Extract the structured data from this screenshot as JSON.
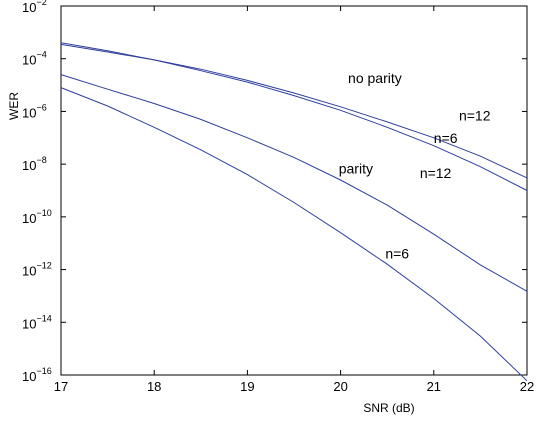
{
  "chart_data": {
    "type": "line",
    "xlabel": "SNR (dB)",
    "ylabel": "WER",
    "xlim": [
      17,
      22
    ],
    "ylim": [
      1e-16,
      0.01
    ],
    "yscale": "log",
    "grid": false,
    "legend": "none",
    "xticks": [
      17,
      18,
      19,
      20,
      21,
      22
    ],
    "yticks": [
      {
        "value": 0.01,
        "base": "10",
        "exp": "−2"
      },
      {
        "value": 0.0001,
        "base": "10",
        "exp": "−4"
      },
      {
        "value": 1e-06,
        "base": "10",
        "exp": "−6"
      },
      {
        "value": 1e-08,
        "base": "10",
        "exp": "−8"
      },
      {
        "value": 1e-10,
        "base": "10",
        "exp": "−10"
      },
      {
        "value": 1e-12,
        "base": "10",
        "exp": "−12"
      },
      {
        "value": 1e-14,
        "base": "10",
        "exp": "−14"
      },
      {
        "value": 1e-16,
        "base": "10",
        "exp": "−16"
      }
    ],
    "line_color": "#2f3f9e",
    "series": [
      {
        "x": [
          17,
          17.5,
          18,
          18.5,
          19,
          19.5,
          20,
          20.5,
          21,
          21.5,
          22
        ],
        "y": [
          0.0004,
          0.0002,
          9e-05,
          4e-05,
          1.5e-05,
          5e-06,
          1.5e-06,
          4e-07,
          1e-07,
          2e-08,
          3e-09
        ]
      },
      {
        "x": [
          17,
          17.5,
          18,
          18.5,
          19,
          19.5,
          20,
          20.5,
          21,
          21.5,
          22
        ],
        "y": [
          0.00035,
          0.00018,
          9e-05,
          3.5e-05,
          1.3e-05,
          4e-06,
          1.1e-06,
          2.5e-07,
          5e-08,
          8e-09,
          1e-09
        ]
      },
      {
        "x": [
          17,
          17.5,
          18,
          18.5,
          19,
          19.5,
          20,
          20.5,
          21,
          21.5,
          22
        ],
        "y": [
          2.5e-05,
          7e-06,
          2e-06,
          5e-07,
          1e-07,
          1.8e-08,
          2.5e-09,
          2.8e-10,
          2.2e-11,
          1.5e-12,
          1.5e-13
        ]
      },
      {
        "x": [
          17,
          17.5,
          18,
          18.5,
          19,
          19.5,
          20,
          20.5,
          21,
          21.5,
          22
        ],
        "y": [
          8e-06,
          1.6e-06,
          2.5e-07,
          3.5e-08,
          4e-09,
          3.5e-10,
          2.5e-11,
          1.6e-12,
          8e-14,
          3e-15,
          6e-17
        ]
      }
    ],
    "annotations": [
      {
        "text": "no parity",
        "x": 20.08,
        "y": 1.2e-05
      },
      {
        "text": "n=12",
        "x": 21.27,
        "y": 4.6e-07
      },
      {
        "text": "n=6",
        "x": 21.0,
        "y": 6.3e-08
      },
      {
        "text": "parity",
        "x": 19.98,
        "y": 4.5e-09
      },
      {
        "text": "n=12",
        "x": 20.85,
        "y": 3e-09
      },
      {
        "text": "n=6",
        "x": 20.48,
        "y": 2.6e-12
      }
    ]
  }
}
